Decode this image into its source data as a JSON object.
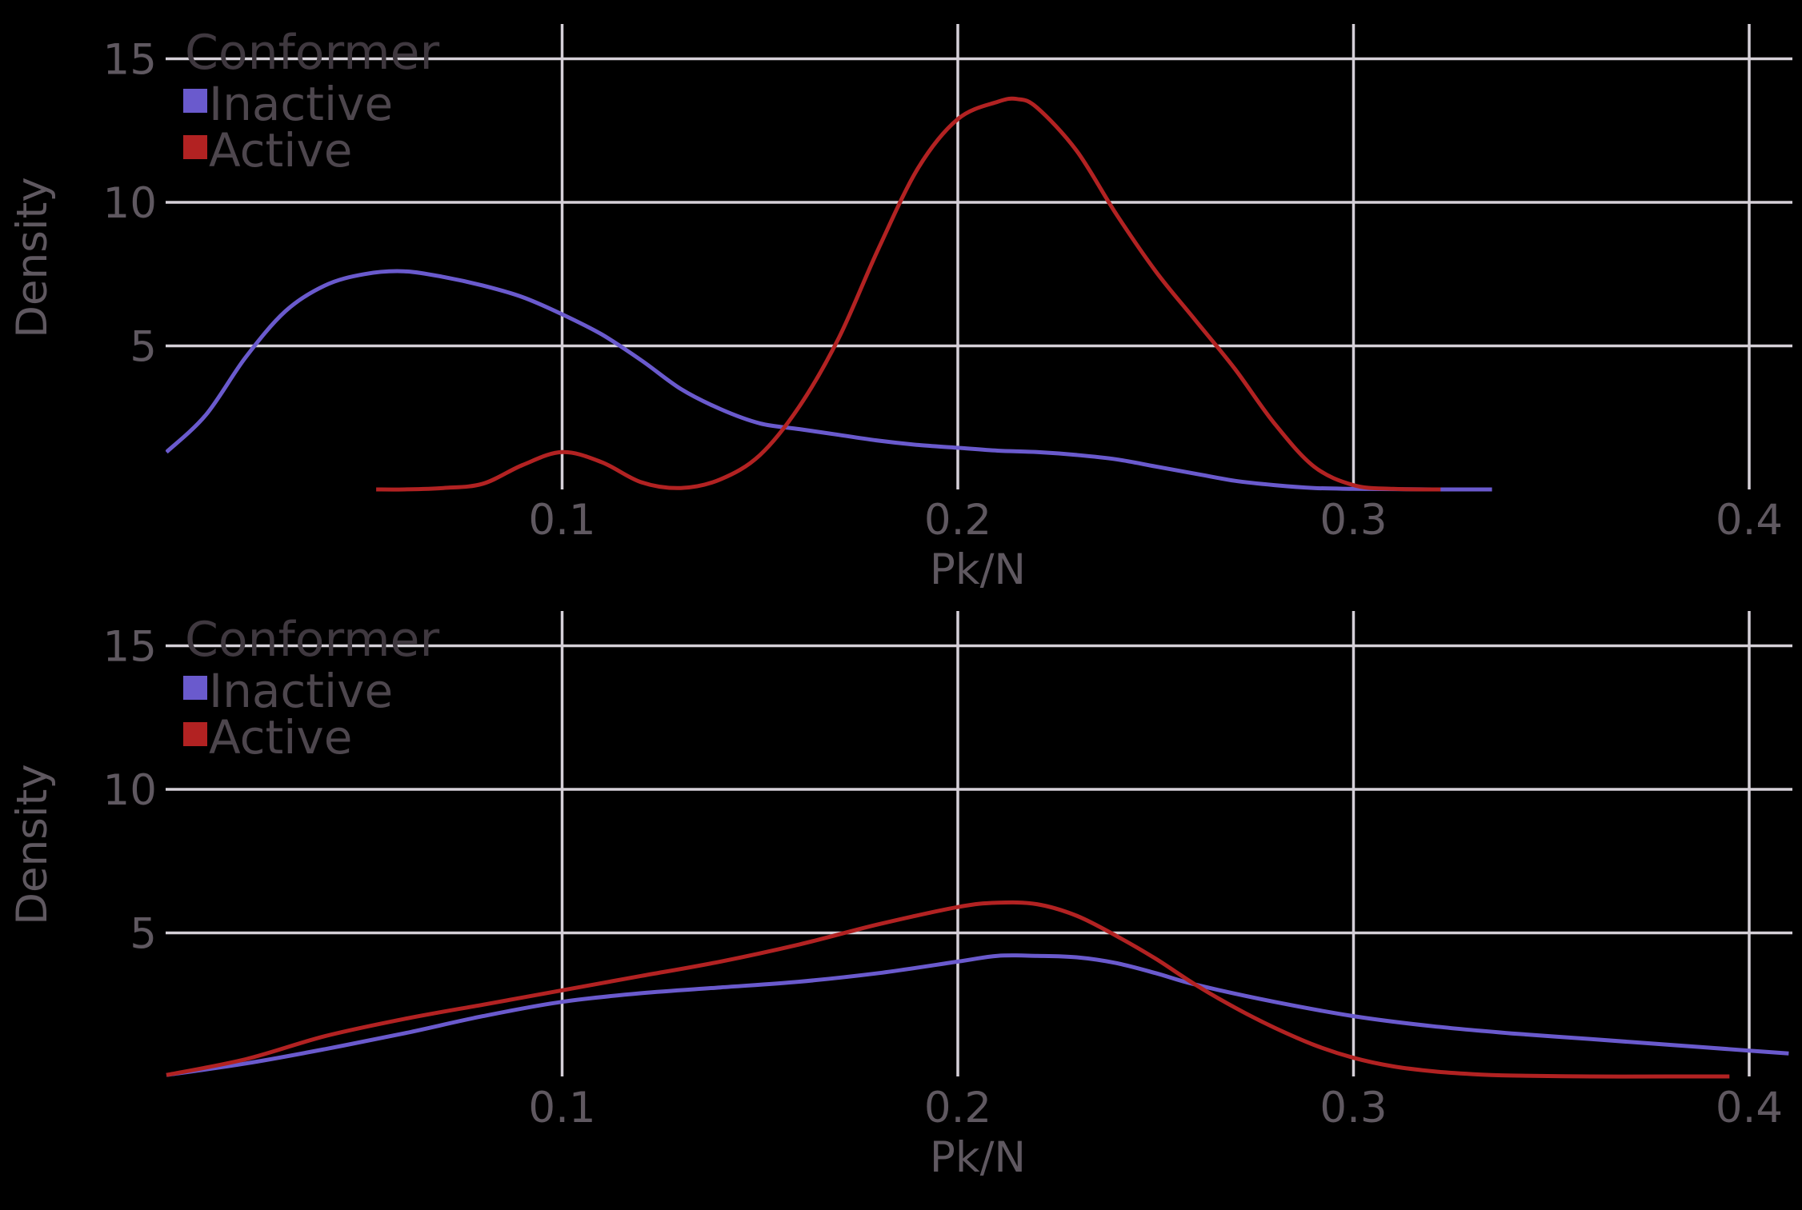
{
  "chart_data": [
    {
      "type": "line",
      "title": "",
      "xlabel": "Pk/N",
      "ylabel": "Density",
      "xlim": [
        0.0,
        0.41
      ],
      "ylim": [
        0,
        16
      ],
      "xticks": [
        0.1,
        0.2,
        0.3,
        0.4
      ],
      "xtick_labels": [
        "0.1",
        "0.2",
        "0.3",
        "0.4"
      ],
      "yticks": [
        5,
        10,
        15
      ],
      "ytick_labels": [
        "5",
        "10",
        "15"
      ],
      "grid": true,
      "legend": {
        "title": "Conformer",
        "placement": "top-left",
        "entries": [
          {
            "label": "Inactive",
            "color": "#6a5acd"
          },
          {
            "label": "Active",
            "color": "#b22222"
          }
        ]
      },
      "series": [
        {
          "name": "Inactive",
          "color": "#6a5acd",
          "x": [
            0.0,
            0.01,
            0.02,
            0.03,
            0.04,
            0.05,
            0.06,
            0.07,
            0.08,
            0.09,
            0.1,
            0.11,
            0.12,
            0.13,
            0.14,
            0.15,
            0.16,
            0.17,
            0.18,
            0.19,
            0.2,
            0.21,
            0.22,
            0.23,
            0.24,
            0.25,
            0.26,
            0.27,
            0.28,
            0.29,
            0.3,
            0.31,
            0.32,
            0.335
          ],
          "y": [
            1.3,
            2.6,
            4.6,
            6.2,
            7.1,
            7.5,
            7.6,
            7.4,
            7.1,
            6.7,
            6.1,
            5.4,
            4.5,
            3.5,
            2.8,
            2.3,
            2.1,
            1.9,
            1.7,
            1.55,
            1.45,
            1.35,
            1.3,
            1.2,
            1.05,
            0.8,
            0.55,
            0.3,
            0.15,
            0.05,
            0.02,
            0.01,
            0.0,
            0.0
          ]
        },
        {
          "name": "Active",
          "color": "#b22222",
          "x": [
            0.053,
            0.06,
            0.07,
            0.08,
            0.09,
            0.1,
            0.11,
            0.12,
            0.13,
            0.14,
            0.15,
            0.16,
            0.17,
            0.18,
            0.19,
            0.2,
            0.21,
            0.215,
            0.22,
            0.23,
            0.24,
            0.25,
            0.26,
            0.27,
            0.28,
            0.29,
            0.3,
            0.31,
            0.322
          ],
          "y": [
            0.0,
            0.0,
            0.05,
            0.2,
            0.85,
            1.3,
            0.95,
            0.25,
            0.05,
            0.35,
            1.2,
            2.9,
            5.3,
            8.4,
            11.2,
            12.9,
            13.5,
            13.6,
            13.3,
            11.8,
            9.6,
            7.6,
            5.9,
            4.2,
            2.3,
            0.8,
            0.15,
            0.02,
            0.0
          ]
        }
      ]
    },
    {
      "type": "line",
      "title": "",
      "xlabel": "Pk/N",
      "ylabel": "Density",
      "xlim": [
        0.0,
        0.41
      ],
      "ylim": [
        0,
        16
      ],
      "xticks": [
        0.1,
        0.2,
        0.3,
        0.4
      ],
      "xtick_labels": [
        "0.1",
        "0.2",
        "0.3",
        "0.4"
      ],
      "yticks": [
        5,
        10,
        15
      ],
      "ytick_labels": [
        "5",
        "10",
        "15"
      ],
      "grid": true,
      "legend": {
        "title": "Conformer",
        "placement": "top-left",
        "entries": [
          {
            "label": "Inactive",
            "color": "#6a5acd"
          },
          {
            "label": "Active",
            "color": "#b22222"
          }
        ]
      },
      "series": [
        {
          "name": "Inactive",
          "color": "#6a5acd",
          "x": [
            0.0,
            0.02,
            0.04,
            0.06,
            0.08,
            0.1,
            0.12,
            0.14,
            0.16,
            0.18,
            0.2,
            0.21,
            0.22,
            0.23,
            0.24,
            0.25,
            0.26,
            0.28,
            0.3,
            0.32,
            0.34,
            0.36,
            0.38,
            0.4,
            0.41
          ],
          "y": [
            0.05,
            0.45,
            0.95,
            1.5,
            2.1,
            2.6,
            2.9,
            3.1,
            3.3,
            3.6,
            4.0,
            4.2,
            4.2,
            4.15,
            3.95,
            3.6,
            3.2,
            2.6,
            2.1,
            1.75,
            1.5,
            1.3,
            1.1,
            0.9,
            0.8
          ]
        },
        {
          "name": "Active",
          "color": "#b22222",
          "x": [
            0.0,
            0.02,
            0.04,
            0.06,
            0.08,
            0.1,
            0.12,
            0.14,
            0.16,
            0.18,
            0.2,
            0.21,
            0.22,
            0.23,
            0.24,
            0.25,
            0.26,
            0.27,
            0.28,
            0.29,
            0.3,
            0.31,
            0.32,
            0.33,
            0.34,
            0.36,
            0.38,
            0.395
          ],
          "y": [
            0.05,
            0.6,
            1.4,
            2.0,
            2.5,
            3.0,
            3.5,
            4.0,
            4.6,
            5.3,
            5.9,
            6.05,
            6.0,
            5.6,
            4.9,
            4.1,
            3.2,
            2.4,
            1.7,
            1.1,
            0.65,
            0.35,
            0.18,
            0.08,
            0.03,
            0.0,
            0.0,
            0.0
          ]
        }
      ]
    }
  ]
}
